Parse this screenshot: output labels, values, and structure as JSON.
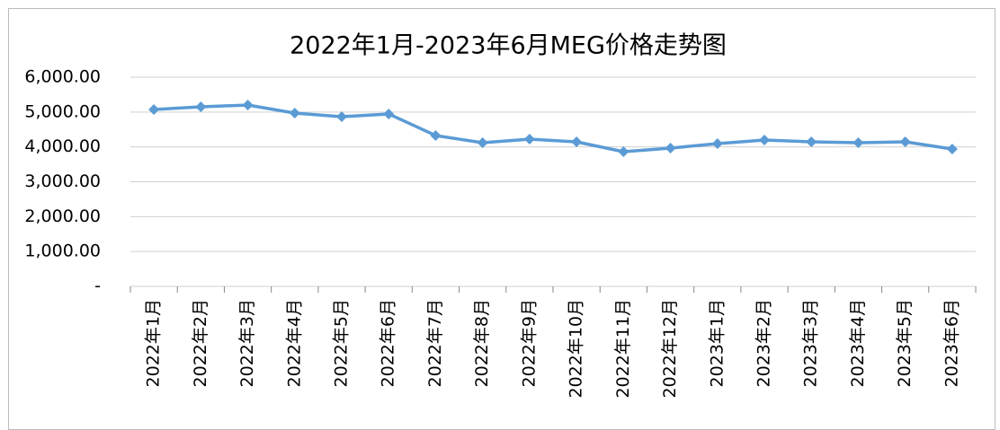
{
  "chart_data": {
    "type": "line",
    "title": "2022年1月-2023年6月MEG价格走势图",
    "categories": [
      "2022年1月",
      "2022年2月",
      "2022年3月",
      "2022年4月",
      "2022年5月",
      "2022年6月",
      "2022年7月",
      "2022年8月",
      "2022年9月",
      "2022年10月",
      "2022年11月",
      "2022年12月",
      "2023年1月",
      "2023年2月",
      "2023年3月",
      "2023年4月",
      "2023年5月",
      "2023年6月"
    ],
    "values": [
      5073,
      5150,
      5202,
      4970,
      4867,
      4945,
      4327,
      4120,
      4224,
      4146,
      3863,
      3966,
      4095,
      4198,
      4146,
      4120,
      4146,
      3940
    ],
    "color": "#5b9bd5",
    "ylim": [
      0,
      6000
    ],
    "yticks": [
      {
        "value": 0,
        "label": "-"
      },
      {
        "value": 1000,
        "label": "1,000.00"
      },
      {
        "value": 2000,
        "label": "2,000.00"
      },
      {
        "value": 3000,
        "label": "3,000.00"
      },
      {
        "value": 4000,
        "label": "4,000.00"
      },
      {
        "value": 5000,
        "label": "5,000.00"
      },
      {
        "value": 6000,
        "label": "6,000.00"
      }
    ],
    "grid": true
  }
}
